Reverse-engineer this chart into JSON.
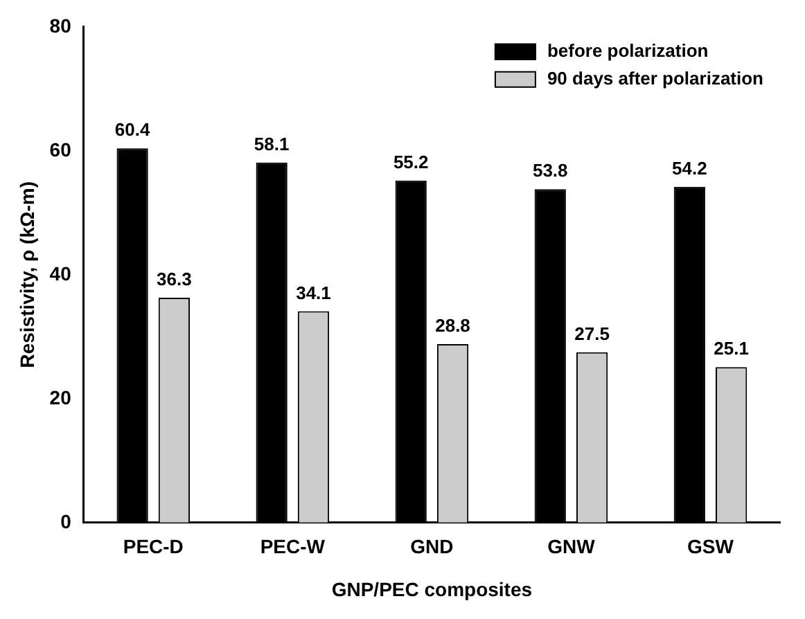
{
  "chart_data": {
    "type": "bar",
    "xlabel": "GNP/PEC composites",
    "ylabel": "Resistivity, ρ (kΩ-m)",
    "categories": [
      "PEC-D",
      "PEC-W",
      "GND",
      "GNW",
      "GSW"
    ],
    "series": [
      {
        "name": "before polarization",
        "color": "#000000",
        "values": [
          60.4,
          58.1,
          55.2,
          53.8,
          54.2
        ]
      },
      {
        "name": "90 days after polarization",
        "color": "#cccccc",
        "values": [
          36.3,
          34.1,
          28.8,
          27.5,
          25.1
        ]
      }
    ],
    "ylim": [
      0,
      80
    ],
    "yticks": [
      0,
      20,
      40,
      60,
      80
    ],
    "grid": false,
    "legend": "top right",
    "data_labels": true
  }
}
